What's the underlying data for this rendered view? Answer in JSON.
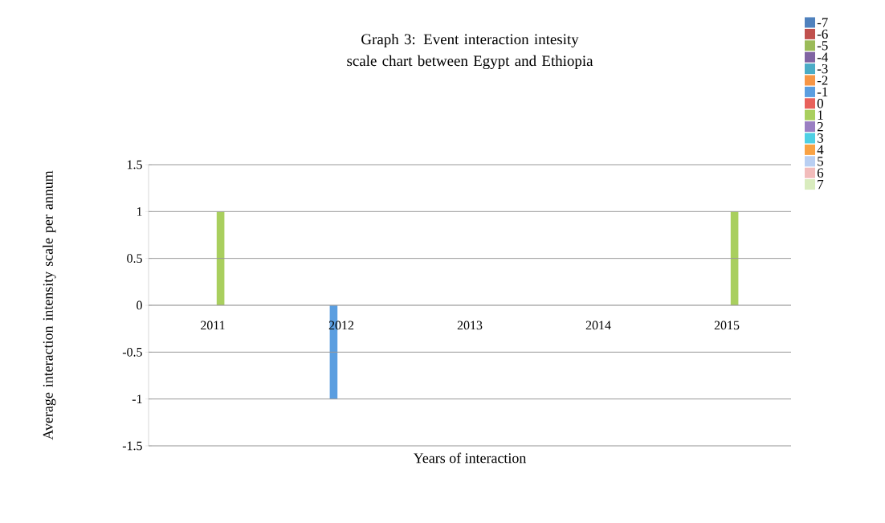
{
  "chart_data": {
    "type": "bar",
    "title": "Graph 3: Event interaction intesity scale chart between Egypt and Ethiopia",
    "xlabel": "Years of interaction",
    "ylabel": "Average interaction intensity scale per annum",
    "categories": [
      "2011",
      "2012",
      "2013",
      "2014",
      "2015"
    ],
    "series": [
      {
        "name": "-7",
        "color": "#4f81bd",
        "values": [
          null,
          null,
          null,
          null,
          null
        ]
      },
      {
        "name": "-6",
        "color": "#c0504d",
        "values": [
          null,
          null,
          null,
          null,
          null
        ]
      },
      {
        "name": "-5",
        "color": "#9bbb59",
        "values": [
          null,
          null,
          null,
          null,
          null
        ]
      },
      {
        "name": "-4",
        "color": "#8064a2",
        "values": [
          null,
          null,
          null,
          null,
          null
        ]
      },
      {
        "name": "-3",
        "color": "#4bacc6",
        "values": [
          null,
          null,
          null,
          null,
          null
        ]
      },
      {
        "name": "-2",
        "color": "#f79646",
        "values": [
          null,
          null,
          null,
          null,
          null
        ]
      },
      {
        "name": "-1",
        "color": "#5b9ee0",
        "values": [
          null,
          -1,
          null,
          null,
          null
        ]
      },
      {
        "name": "0",
        "color": "#e8615b",
        "values": [
          null,
          null,
          null,
          null,
          null
        ]
      },
      {
        "name": "1",
        "color": "#a9cf5e",
        "values": [
          1,
          null,
          null,
          null,
          1
        ]
      },
      {
        "name": "2",
        "color": "#9a7fc2",
        "values": [
          null,
          null,
          null,
          null,
          null
        ]
      },
      {
        "name": "3",
        "color": "#4fd0e4",
        "values": [
          null,
          null,
          null,
          null,
          null
        ]
      },
      {
        "name": "4",
        "color": "#f9a244",
        "values": [
          null,
          null,
          null,
          null,
          null
        ]
      },
      {
        "name": "5",
        "color": "#b9cff2",
        "values": [
          null,
          null,
          null,
          null,
          null
        ]
      },
      {
        "name": "6",
        "color": "#f2bcbb",
        "values": [
          null,
          null,
          null,
          null,
          null
        ]
      },
      {
        "name": "7",
        "color": "#d9ecbe",
        "values": [
          null,
          null,
          null,
          null,
          null
        ]
      }
    ],
    "ylim": [
      -1.5,
      1.5
    ],
    "yticks": [
      -1.5,
      -1,
      -0.5,
      0,
      0.5,
      1,
      1.5
    ],
    "grid": "y",
    "legend": "right"
  }
}
